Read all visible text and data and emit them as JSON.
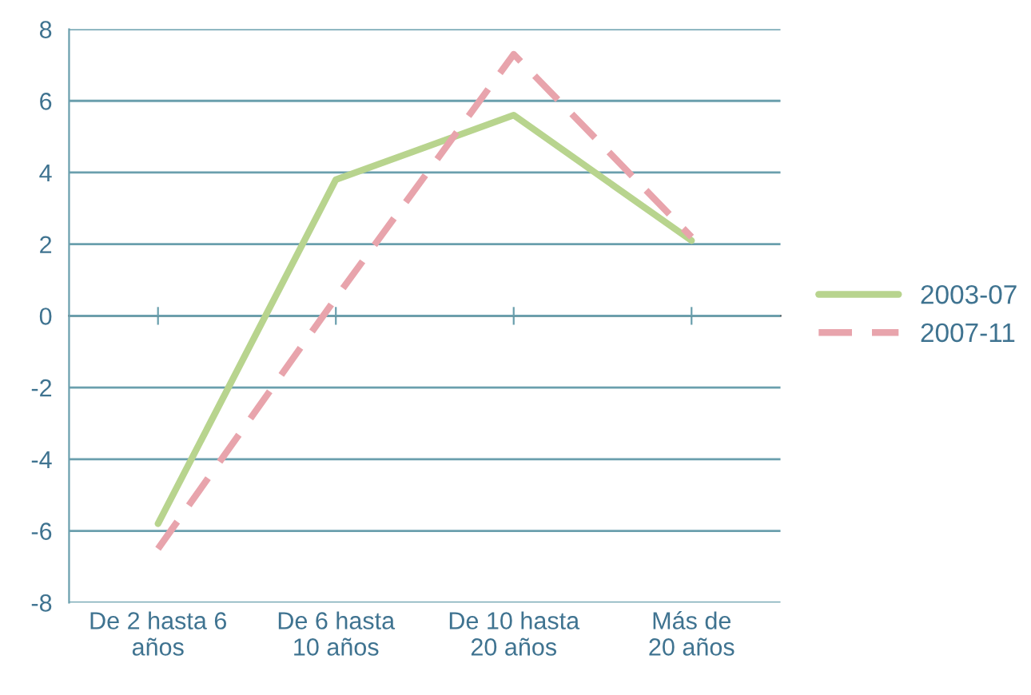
{
  "chart_data": {
    "type": "line",
    "categories": [
      "De 2 hasta 6\naños",
      "De 6 hasta\n10 años",
      "De 10 hasta\n20 años",
      "Más de\n20 años"
    ],
    "series": [
      {
        "name": "2003-07",
        "color": "#b8d48e",
        "values": [
          -5.8,
          3.8,
          5.6,
          2.1
        ],
        "line_style": "solid"
      },
      {
        "name": "2007-11",
        "color": "#e8a4ac",
        "values": [
          -6.5,
          0.5,
          7.3,
          2.2
        ],
        "line_style": "dashed"
      }
    ],
    "ylim": [
      -8,
      8
    ],
    "yticks": [
      -8,
      -6,
      -4,
      -2,
      0,
      2,
      4,
      6,
      8
    ],
    "grid": "y",
    "legend": "right",
    "marker": "none"
  }
}
